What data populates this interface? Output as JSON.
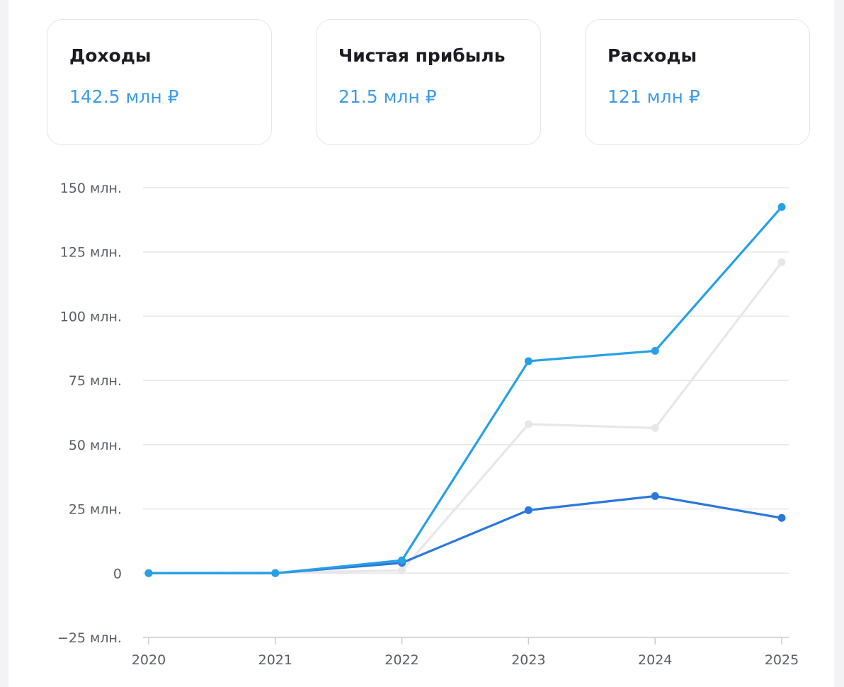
{
  "cards": [
    {
      "title": "Доходы",
      "value": "142.5 млн ₽"
    },
    {
      "title": "Чистая прибыль",
      "value": "21.5 млн ₽"
    },
    {
      "title": "Расходы",
      "value": "121 млн ₽"
    }
  ],
  "colors": {
    "income": "#27a0e5",
    "profit": "#2b78dc",
    "expenses": "#e6e7ea",
    "grid": "#e4e5e8",
    "tick_text": "#5a5d64",
    "card_value": "#3d9be8"
  },
  "chart_data": {
    "type": "line",
    "x": [
      2020,
      2021,
      2022,
      2023,
      2024,
      2025
    ],
    "x_tick_labels": [
      "2020",
      "2021",
      "2022",
      "2023",
      "2024",
      "2025"
    ],
    "y_ticks": [
      -25000000,
      0,
      25000000,
      50000000,
      75000000,
      100000000,
      125000000,
      150000000
    ],
    "y_tick_labels": [
      "−25 млн.",
      "0",
      "25 млн.",
      "50 млн.",
      "75 млн.",
      "100 млн.",
      "125 млн.",
      "150 млн."
    ],
    "ylim": [
      -25000000,
      150000000
    ],
    "xlim": [
      2020,
      2025
    ],
    "grid": true,
    "legend": "none",
    "series": [
      {
        "key": "expenses",
        "values": [
          0,
          300000,
          1000000,
          58000000,
          56500000,
          121000000
        ]
      },
      {
        "key": "profit",
        "values": [
          0,
          0,
          4000000,
          24500000,
          30000000,
          21500000
        ]
      },
      {
        "key": "income",
        "values": [
          0,
          0,
          5000000,
          82500000,
          86500000,
          142500000
        ]
      }
    ]
  }
}
